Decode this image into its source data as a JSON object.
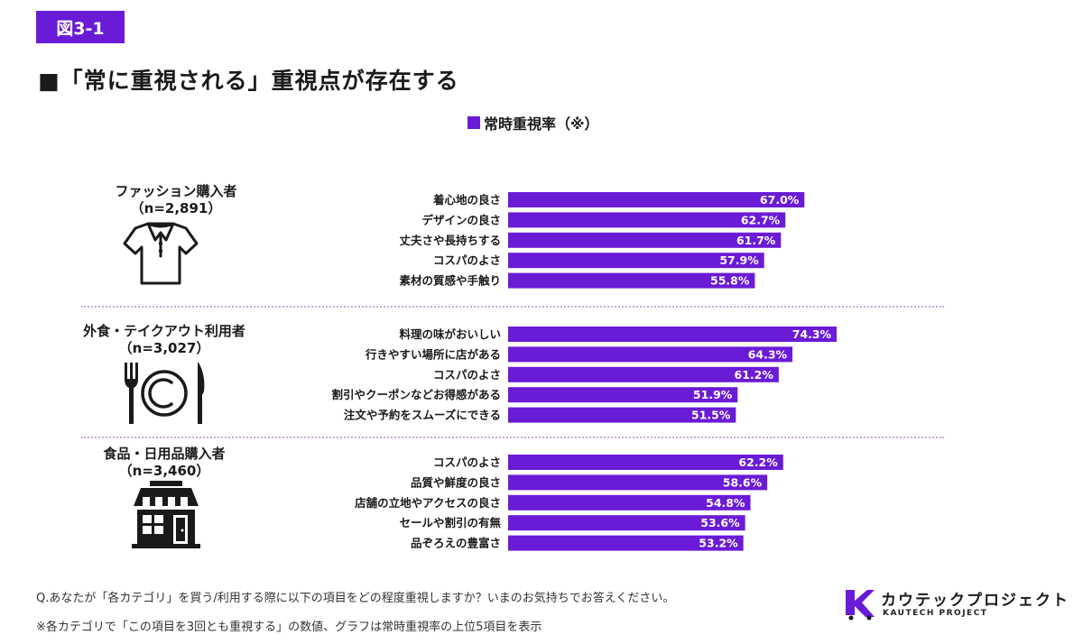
{
  "figure_label": "図3-1",
  "title": "■「常に重視される」重視点が存在する",
  "legend_label": "常時重視率（※）",
  "colors": {
    "accent": "#6a1bd6",
    "bar_text": "#ffffff",
    "divider": "#c9a9d8"
  },
  "groups": [
    {
      "name": "ファッション購入者",
      "n": "（n=2,891）",
      "icon": "shirt-icon"
    },
    {
      "name": "外食・テイクアウト利用者",
      "n": "（n=3,027）",
      "icon": "fork-plate-knife-icon"
    },
    {
      "name": "食品・日用品購入者",
      "n": "（n=3,460）",
      "icon": "store-icon"
    }
  ],
  "chart_data": [
    {
      "type": "bar",
      "orientation": "horizontal",
      "group": "ファッション購入者",
      "categories": [
        "着心地の良さ",
        "デザインの良さ",
        "丈夫さや長持ちする",
        "コスパのよさ",
        "素材の質感や手触り"
      ],
      "values": [
        67.0,
        62.7,
        61.7,
        57.9,
        55.8
      ],
      "value_labels": [
        "67.0%",
        "62.7%",
        "61.7%",
        "57.9%",
        "55.8%"
      ]
    },
    {
      "type": "bar",
      "orientation": "horizontal",
      "group": "外食・テイクアウト利用者",
      "categories": [
        "料理の味がおいしい",
        "行きやすい場所に店がある",
        "コスパのよさ",
        "割引やクーポンなどお得感がある",
        "注文や予約をスムーズにできる"
      ],
      "values": [
        74.3,
        64.3,
        61.2,
        51.9,
        51.5
      ],
      "value_labels": [
        "74.3%",
        "64.3%",
        "61.2%",
        "51.9%",
        "51.5%"
      ]
    },
    {
      "type": "bar",
      "orientation": "horizontal",
      "group": "食品・日用品購入者",
      "categories": [
        "コスパのよさ",
        "品質や鮮度の良さ",
        "店舗の立地やアクセスの良さ",
        "セールや割引の有無",
        "品ぞろえの豊富さ"
      ],
      "values": [
        62.2,
        58.6,
        54.8,
        53.6,
        53.2
      ],
      "value_labels": [
        "62.2%",
        "58.6%",
        "54.8%",
        "53.6%",
        "53.2%"
      ]
    }
  ],
  "footnotes": {
    "question": "Q.あなたが「各カテゴリ」を買う/利用する際に以下の項目をどの程度重視しますか？いまのお気持ちでお答えください。",
    "note": "※各カテゴリで「この項目を3回とも重視する」の数値、グラフは常時重視率の上位5項目を表示"
  },
  "logo": {
    "name": "カウテックプロジェクト",
    "sub": "KAUTECH PROJECT"
  }
}
